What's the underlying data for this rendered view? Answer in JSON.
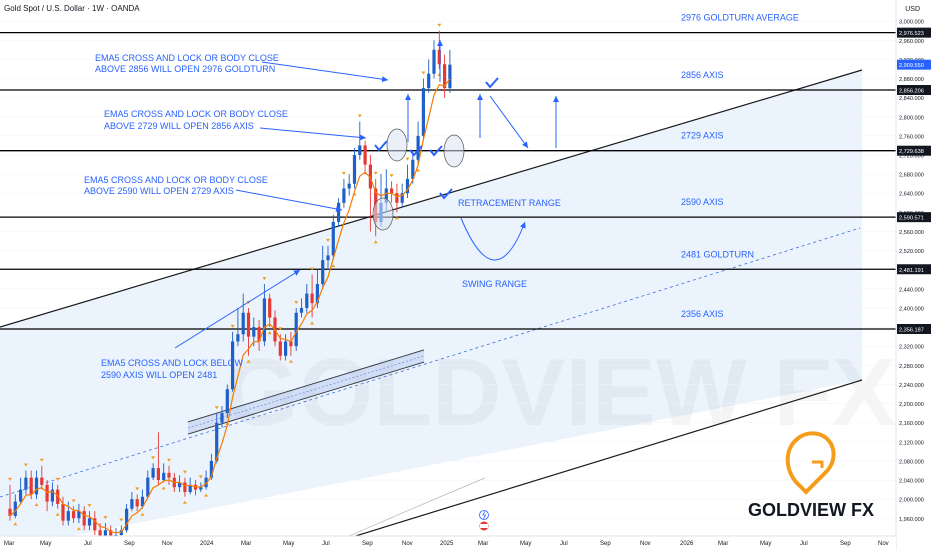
{
  "header": {
    "symbol_title": "Gold Spot / U.S. Dollar · 1W · OANDA",
    "currency": "USD"
  },
  "brand": {
    "name": "GOLDVIEW FX",
    "watermark": "GOLDVIEW FX",
    "accent": "#f59c1a"
  },
  "colors": {
    "up": "#1e5fc8",
    "down": "#e53935",
    "ema": "#f57c00",
    "annotation": "#2962ff",
    "level": "#000000",
    "channel_fill": "#e8f1fc"
  },
  "chart_data": {
    "type": "candlestick",
    "title": "",
    "xlabel": "",
    "ylabel": "USD",
    "ylim": [
      1940,
      3020
    ],
    "x_tick_labels": [
      "Mar",
      "May",
      "Jul",
      "Sep",
      "Nov",
      "2024",
      "Mar",
      "May",
      "Jul",
      "Sep",
      "Nov",
      "2025",
      "Mar",
      "May",
      "Jul",
      "Sep",
      "Nov",
      "2026",
      "Mar",
      "May",
      "Jul",
      "Sep",
      "Nov"
    ],
    "y_tick_labels": [
      "3,000.000",
      "2,960.000",
      "2,920.000",
      "2,880.000",
      "2,840.000",
      "2,800.000",
      "2,760.000",
      "2,720.000",
      "2,680.000",
      "2,640.000",
      "2,600.000",
      "2,560.000",
      "2,520.000",
      "2,480.000",
      "2,440.000",
      "2,400.000",
      "2,360.000",
      "2,320.000",
      "2,280.000",
      "2,240.000",
      "2,200.000",
      "2,160.000",
      "2,120.000",
      "2,080.000",
      "2,040.000",
      "2,000.000",
      "1,960.000"
    ],
    "y_ticks": [
      3000,
      2960,
      2920,
      2880,
      2840,
      2800,
      2760,
      2720,
      2680,
      2640,
      2600,
      2560,
      2520,
      2480,
      2440,
      2400,
      2360,
      2320,
      2280,
      2240,
      2200,
      2160,
      2120,
      2080,
      2040,
      2000,
      1960
    ],
    "levels": [
      {
        "value": 2976,
        "price_tag": "2,976.523",
        "label": "2976 GOLDTURN AVERAGE"
      },
      {
        "value": 2856,
        "price_tag": "2,856.206",
        "label": "2856 AXIS"
      },
      {
        "value": 2729,
        "price_tag": "2,729.638",
        "label": "2729 AXIS"
      },
      {
        "value": 2590,
        "price_tag": "2,590.571",
        "label": "2590 AXIS"
      },
      {
        "value": 2481,
        "price_tag": "2,481.191",
        "label": "2481 GOLDTURN"
      },
      {
        "value": 2356,
        "price_tag": "2,356.187",
        "label": "2356 AXIS"
      }
    ],
    "current_price": {
      "value": 2909,
      "price_tag": "2,909.550"
    },
    "candles": [
      [
        1980,
        1965,
        2030,
        1955
      ],
      [
        1965,
        1995,
        2010,
        1960
      ],
      [
        1995,
        2020,
        2045,
        1990
      ],
      [
        2020,
        2045,
        2060,
        2010
      ],
      [
        2045,
        2010,
        2060,
        2000
      ],
      [
        2010,
        2045,
        2060,
        2000
      ],
      [
        2045,
        2030,
        2070,
        2020
      ],
      [
        2030,
        1995,
        2040,
        1975
      ],
      [
        1995,
        2020,
        2035,
        1985
      ],
      [
        2020,
        1990,
        2030,
        1980
      ],
      [
        1990,
        1955,
        2005,
        1945
      ],
      [
        1955,
        1975,
        1995,
        1945
      ],
      [
        1975,
        1960,
        1985,
        1950
      ],
      [
        1960,
        1975,
        1990,
        1950
      ],
      [
        1975,
        1945,
        1985,
        1935
      ],
      [
        1945,
        1960,
        1975,
        1935
      ],
      [
        1960,
        1935,
        1975,
        1925
      ],
      [
        1935,
        1920,
        1950,
        1910
      ],
      [
        1920,
        1935,
        1950,
        1915
      ],
      [
        1935,
        1915,
        1945,
        1905
      ],
      [
        1915,
        1925,
        1940,
        1908
      ],
      [
        1925,
        1935,
        1945,
        1915
      ],
      [
        1935,
        1980,
        1990,
        1930
      ],
      [
        1980,
        2000,
        2015,
        1975
      ],
      [
        2000,
        1985,
        2010,
        1975
      ],
      [
        1985,
        2005,
        2020,
        1980
      ],
      [
        2005,
        2045,
        2060,
        2000
      ],
      [
        2045,
        2065,
        2075,
        2040
      ],
      [
        2065,
        2040,
        2140,
        2030
      ],
      [
        2040,
        2055,
        2075,
        2035
      ],
      [
        2055,
        2045,
        2070,
        2030
      ],
      [
        2045,
        2025,
        2055,
        2015
      ],
      [
        2025,
        2035,
        2050,
        2015
      ],
      [
        2035,
        2015,
        2045,
        2005
      ],
      [
        2015,
        2030,
        2045,
        2010
      ],
      [
        2030,
        2020,
        2040,
        2008
      ],
      [
        2020,
        2025,
        2035,
        2015
      ],
      [
        2025,
        2045,
        2060,
        2020
      ],
      [
        2045,
        2080,
        2095,
        2040
      ],
      [
        2080,
        2160,
        2180,
        2075
      ],
      [
        2160,
        2180,
        2195,
        2150
      ],
      [
        2180,
        2230,
        2240,
        2170
      ],
      [
        2230,
        2330,
        2350,
        2225
      ],
      [
        2330,
        2345,
        2400,
        2320
      ],
      [
        2345,
        2390,
        2430,
        2330
      ],
      [
        2390,
        2340,
        2400,
        2300
      ],
      [
        2340,
        2360,
        2380,
        2320
      ],
      [
        2360,
        2330,
        2375,
        2310
      ],
      [
        2330,
        2420,
        2450,
        2320
      ],
      [
        2420,
        2380,
        2430,
        2360
      ],
      [
        2380,
        2330,
        2395,
        2320
      ],
      [
        2330,
        2300,
        2345,
        2290
      ],
      [
        2300,
        2330,
        2345,
        2290
      ],
      [
        2330,
        2320,
        2350,
        2300
      ],
      [
        2320,
        2390,
        2400,
        2310
      ],
      [
        2390,
        2400,
        2420,
        2380
      ],
      [
        2400,
        2430,
        2450,
        2390
      ],
      [
        2430,
        2410,
        2470,
        2380
      ],
      [
        2410,
        2450,
        2480,
        2400
      ],
      [
        2450,
        2500,
        2530,
        2440
      ],
      [
        2500,
        2510,
        2530,
        2480
      ],
      [
        2510,
        2580,
        2595,
        2500
      ],
      [
        2580,
        2620,
        2630,
        2570
      ],
      [
        2620,
        2650,
        2670,
        2610
      ],
      [
        2650,
        2660,
        2680,
        2635
      ],
      [
        2660,
        2720,
        2735,
        2650
      ],
      [
        2720,
        2740,
        2790,
        2710
      ],
      [
        2740,
        2700,
        2750,
        2680
      ],
      [
        2700,
        2650,
        2720,
        2560
      ],
      [
        2650,
        2580,
        2670,
        2550
      ],
      [
        2580,
        2620,
        2680,
        2570
      ],
      [
        2620,
        2650,
        2690,
        2600
      ],
      [
        2650,
        2640,
        2665,
        2620
      ],
      [
        2640,
        2620,
        2660,
        2600
      ],
      [
        2620,
        2640,
        2660,
        2610
      ],
      [
        2640,
        2670,
        2700,
        2630
      ],
      [
        2670,
        2710,
        2730,
        2660
      ],
      [
        2710,
        2760,
        2790,
        2700
      ],
      [
        2760,
        2860,
        2880,
        2750
      ],
      [
        2860,
        2890,
        2920,
        2850
      ],
      [
        2890,
        2940,
        2960,
        2880
      ],
      [
        2940,
        2910,
        2980,
        2900
      ],
      [
        2910,
        2860,
        2930,
        2840
      ],
      [
        2860,
        2909,
        2940,
        2850
      ]
    ],
    "annotations": [
      {
        "text": "EMA5 CROSS AND LOCK OR BODY CLOSE",
        "group": "a1"
      },
      {
        "text": "ABOVE 2856 WILL OPEN 2976 GOLDTURN",
        "group": "a1"
      },
      {
        "text": "EMA5 CROSS AND LOCK OR BODY CLOSE",
        "group": "a2"
      },
      {
        "text": "ABOVE 2729 WILL OPEN 2856 AXIS",
        "group": "a2"
      },
      {
        "text": "EMA5 CROSS AND LOCK OR BODY CLOSE",
        "group": "a3"
      },
      {
        "text": "ABOVE 2590 WILL OPEN 2729 AXIS",
        "group": "a3"
      },
      {
        "text": "EMA5 CROSS AND LOCK BELOW",
        "group": "a4"
      },
      {
        "text": "2590 AXIS WILL OPEN 2481",
        "group": "a4"
      },
      {
        "text": "RETRACEMENT RANGE",
        "group": "r1"
      },
      {
        "text": "SWING RANGE",
        "group": "s1"
      }
    ]
  }
}
